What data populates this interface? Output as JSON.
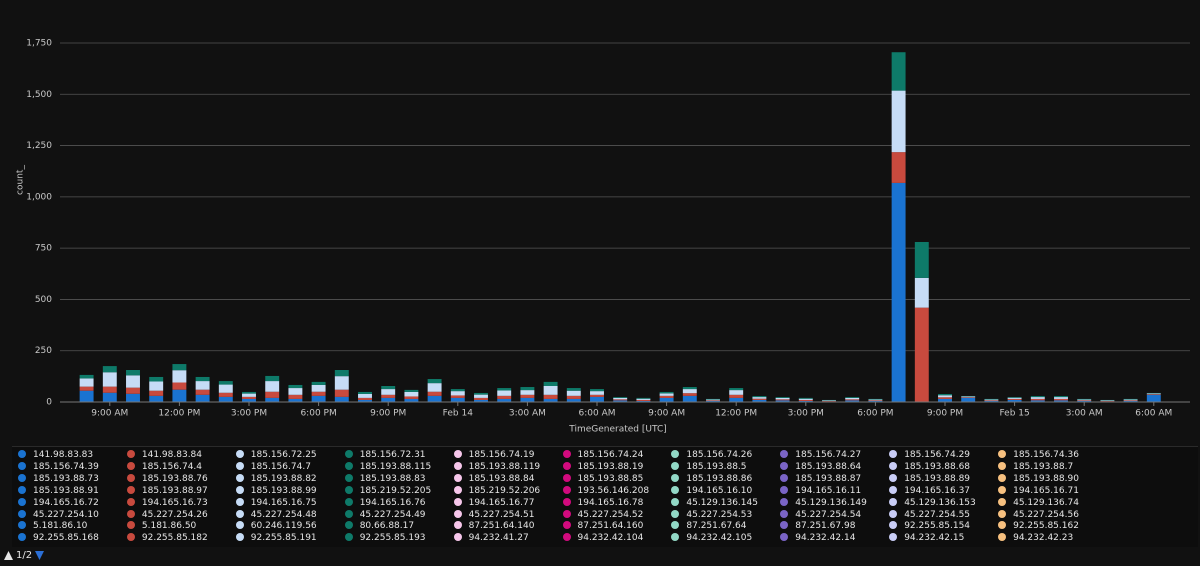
{
  "chart_data": {
    "type": "bar",
    "stacked": true,
    "grid": true,
    "ylabel": "count_",
    "xlabel": "TimeGenerated [UTC]",
    "ylim": [
      0,
      1750
    ],
    "yticks": [
      0,
      250,
      500,
      750,
      {
        "value": 1000,
        "label": "1,000"
      },
      {
        "value": 1250,
        "label": "1,250"
      },
      {
        "value": 1500,
        "label": "1,500"
      },
      {
        "value": 1750,
        "label": "1,750"
      }
    ],
    "categories": [
      null,
      "9:00 AM",
      null,
      null,
      "12:00 PM",
      null,
      null,
      "3:00 PM",
      null,
      null,
      "6:00 PM",
      null,
      null,
      "9:00 PM",
      null,
      null,
      "Feb 14",
      null,
      null,
      "3:00 AM",
      null,
      null,
      "6:00 AM",
      null,
      null,
      "9:00 AM",
      null,
      null,
      "12:00 PM",
      null,
      null,
      "3:00 PM",
      null,
      null,
      "6:00 PM",
      null,
      null,
      "9:00 PM",
      null,
      null,
      "Feb 15",
      null,
      null,
      "3:00 AM",
      null,
      null,
      "6:00 AM"
    ],
    "series": [
      {
        "name": "141.98.83.83",
        "color": "#1a73d1",
        "values": [
          55,
          45,
          40,
          30,
          60,
          35,
          25,
          15,
          20,
          15,
          30,
          25,
          10,
          20,
          15,
          30,
          20,
          10,
          15,
          20,
          15,
          15,
          25,
          8,
          5,
          20,
          30,
          5,
          20,
          10,
          8,
          5,
          3,
          8,
          5,
          1068,
          0,
          15,
          20,
          5,
          10,
          8,
          8,
          5,
          3,
          5,
          35
        ]
      },
      {
        "name": "141.98.83.84",
        "color": "#c84a3e",
        "values": [
          20,
          30,
          30,
          25,
          35,
          25,
          20,
          10,
          30,
          20,
          20,
          35,
          10,
          15,
          12,
          20,
          12,
          10,
          15,
          15,
          20,
          15,
          10,
          5,
          5,
          10,
          13,
          3,
          15,
          6,
          5,
          5,
          2,
          5,
          3,
          150,
          460,
          8,
          3,
          3,
          5,
          7,
          7,
          3,
          2,
          3,
          3
        ]
      },
      {
        "name": "185.156.72.25",
        "color": "#c6dcf6",
        "values": [
          40,
          70,
          60,
          45,
          60,
          42,
          40,
          16,
          52,
          33,
          33,
          66,
          19,
          28,
          22,
          42,
          21,
          16,
          26,
          23,
          43,
          25,
          18,
          7,
          6,
          12,
          20,
          4,
          23,
          8,
          7,
          6,
          3,
          7,
          4,
          300,
          145,
          10,
          4,
          4,
          6,
          9,
          9,
          4,
          3,
          4,
          4
        ]
      },
      {
        "name": "185.156.72.31",
        "color": "#0e7a69",
        "values": [
          17,
          30,
          26,
          22,
          30,
          20,
          17,
          8,
          25,
          15,
          15,
          30,
          10,
          15,
          10,
          20,
          10,
          8,
          12,
          15,
          20,
          13,
          10,
          4,
          4,
          7,
          10,
          3,
          10,
          5,
          4,
          4,
          2,
          4,
          3,
          187,
          175,
          6,
          2,
          3,
          3,
          5,
          5,
          3,
          2,
          3,
          2
        ]
      }
    ],
    "legend_more": [
      {
        "name": "185.156.74.19",
        "color": "#f6c6ea"
      },
      {
        "name": "185.156.74.24",
        "color": "#d20a7e"
      },
      {
        "name": "185.156.74.26",
        "color": "#92d8c6"
      },
      {
        "name": "185.156.74.27",
        "color": "#7a64c6"
      },
      {
        "name": "185.156.74.29",
        "color": "#c9cdf6"
      },
      {
        "name": "185.156.74.36",
        "color": "#f6c07f"
      },
      {
        "name": "185.156.74.39",
        "color": "#1a73d1"
      },
      {
        "name": "185.156.74.4",
        "color": "#c84a3e"
      },
      {
        "name": "185.156.74.7",
        "color": "#c6dcf6"
      },
      {
        "name": "185.193.88.115",
        "color": "#0e7a69"
      },
      {
        "name": "185.193.88.119",
        "color": "#f6c6ea"
      },
      {
        "name": "185.193.88.19",
        "color": "#d20a7e"
      },
      {
        "name": "185.193.88.5",
        "color": "#92d8c6"
      },
      {
        "name": "185.193.88.64",
        "color": "#7a64c6"
      },
      {
        "name": "185.193.88.68",
        "color": "#c9cdf6"
      },
      {
        "name": "185.193.88.7",
        "color": "#f6c07f"
      },
      {
        "name": "185.193.88.73",
        "color": "#1a73d1"
      },
      {
        "name": "185.193.88.76",
        "color": "#c84a3e"
      },
      {
        "name": "185.193.88.82",
        "color": "#c6dcf6"
      },
      {
        "name": "185.193.88.83",
        "color": "#0e7a69"
      },
      {
        "name": "185.193.88.84",
        "color": "#f6c6ea"
      },
      {
        "name": "185.193.88.85",
        "color": "#d20a7e"
      },
      {
        "name": "185.193.88.86",
        "color": "#92d8c6"
      },
      {
        "name": "185.193.88.87",
        "color": "#7a64c6"
      },
      {
        "name": "185.193.88.89",
        "color": "#c9cdf6"
      },
      {
        "name": "185.193.88.90",
        "color": "#f6c07f"
      },
      {
        "name": "185.193.88.91",
        "color": "#1a73d1"
      },
      {
        "name": "185.193.88.97",
        "color": "#c84a3e"
      },
      {
        "name": "185.193.88.99",
        "color": "#c6dcf6"
      },
      {
        "name": "185.219.52.205",
        "color": "#0e7a69"
      },
      {
        "name": "185.219.52.206",
        "color": "#f6c6ea"
      },
      {
        "name": "193.56.146.208",
        "color": "#d20a7e"
      },
      {
        "name": "194.165.16.10",
        "color": "#92d8c6"
      },
      {
        "name": "194.165.16.11",
        "color": "#7a64c6"
      },
      {
        "name": "194.165.16.37",
        "color": "#c9cdf6"
      },
      {
        "name": "194.165.16.71",
        "color": "#f6c07f"
      },
      {
        "name": "194.165.16.72",
        "color": "#1a73d1"
      },
      {
        "name": "194.165.16.73",
        "color": "#c84a3e"
      },
      {
        "name": "194.165.16.75",
        "color": "#c6dcf6"
      },
      {
        "name": "194.165.16.76",
        "color": "#0e7a69"
      },
      {
        "name": "194.165.16.77",
        "color": "#f6c6ea"
      },
      {
        "name": "194.165.16.78",
        "color": "#d20a7e"
      },
      {
        "name": "45.129.136.145",
        "color": "#92d8c6"
      },
      {
        "name": "45.129.136.149",
        "color": "#7a64c6"
      },
      {
        "name": "45.129.136.153",
        "color": "#c9cdf6"
      },
      {
        "name": "45.129.136.74",
        "color": "#f6c07f"
      },
      {
        "name": "45.227.254.10",
        "color": "#1a73d1"
      },
      {
        "name": "45.227.254.26",
        "color": "#c84a3e"
      },
      {
        "name": "45.227.254.48",
        "color": "#c6dcf6"
      },
      {
        "name": "45.227.254.49",
        "color": "#0e7a69"
      },
      {
        "name": "45.227.254.51",
        "color": "#f6c6ea"
      },
      {
        "name": "45.227.254.52",
        "color": "#d20a7e"
      },
      {
        "name": "45.227.254.53",
        "color": "#92d8c6"
      },
      {
        "name": "45.227.254.54",
        "color": "#7a64c6"
      },
      {
        "name": "45.227.254.55",
        "color": "#c9cdf6"
      },
      {
        "name": "45.227.254.56",
        "color": "#f6c07f"
      },
      {
        "name": "5.181.86.10",
        "color": "#1a73d1"
      },
      {
        "name": "5.181.86.50",
        "color": "#c84a3e"
      },
      {
        "name": "60.246.119.56",
        "color": "#c6dcf6"
      },
      {
        "name": "80.66.88.17",
        "color": "#0e7a69"
      },
      {
        "name": "87.251.64.140",
        "color": "#f6c6ea"
      },
      {
        "name": "87.251.64.160",
        "color": "#d20a7e"
      },
      {
        "name": "87.251.67.64",
        "color": "#92d8c6"
      },
      {
        "name": "87.251.67.98",
        "color": "#7a64c6"
      },
      {
        "name": "92.255.85.154",
        "color": "#c9cdf6"
      },
      {
        "name": "92.255.85.162",
        "color": "#f6c07f"
      },
      {
        "name": "92.255.85.168",
        "color": "#1a73d1"
      },
      {
        "name": "92.255.85.182",
        "color": "#c84a3e"
      },
      {
        "name": "92.255.85.191",
        "color": "#c6dcf6"
      },
      {
        "name": "92.255.85.193",
        "color": "#0e7a69"
      },
      {
        "name": "94.232.41.27",
        "color": "#f6c6ea"
      },
      {
        "name": "94.232.42.104",
        "color": "#d20a7e"
      },
      {
        "name": "94.232.42.105",
        "color": "#92d8c6"
      },
      {
        "name": "94.232.42.14",
        "color": "#7a64c6"
      },
      {
        "name": "94.232.42.15",
        "color": "#c9cdf6"
      },
      {
        "name": "94.232.42.23",
        "color": "#f6c07f"
      }
    ],
    "pager": "1/2"
  }
}
